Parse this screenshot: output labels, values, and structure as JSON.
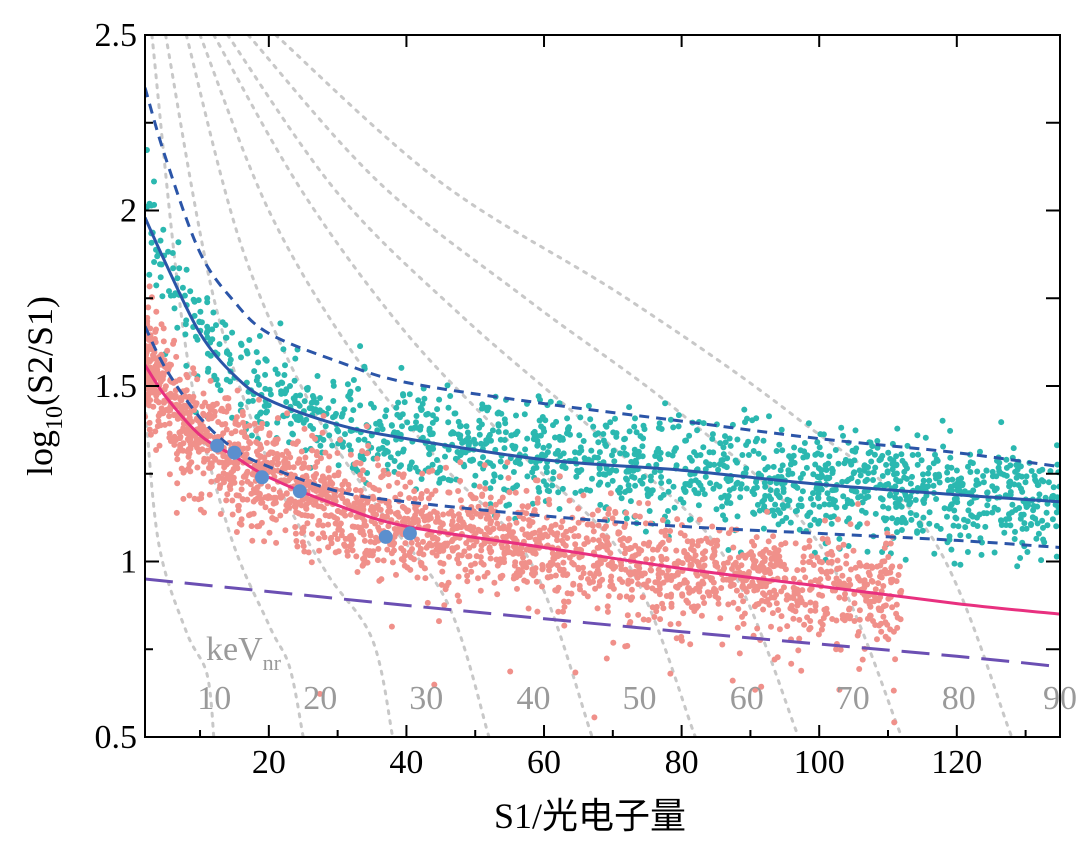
{
  "chart_data": {
    "type": "scatter",
    "xlabel": "S1/光电子量",
    "ylabel_main": "log",
    "ylabel_sub": "10",
    "ylabel_rest": "(S2/S1)",
    "xlim": [
      2,
      135
    ],
    "ylim": [
      0.5,
      2.5
    ],
    "x_ticks": [
      20,
      40,
      60,
      80,
      100,
      120
    ],
    "y_ticks": [
      0.5,
      1,
      1.5,
      2,
      2.5
    ],
    "x_tick_labels": [
      "20",
      "40",
      "60",
      "80",
      "100",
      "120"
    ],
    "y_tick_labels": [
      "0.5",
      "1",
      "1.5",
      "2",
      "2.5"
    ],
    "energy_unit_main": "keV",
    "energy_unit_sub": "nr",
    "energy_contours": [
      {
        "label": "10",
        "points": [
          [
            2,
            1.45
          ],
          [
            4,
            1.05
          ],
          [
            8,
            0.8
          ],
          [
            11,
            0.68
          ],
          [
            12,
            0.5
          ]
        ]
      },
      {
        "label": "20",
        "points": [
          [
            3,
            2.5
          ],
          [
            8,
            1.6
          ],
          [
            14,
            1.1
          ],
          [
            20,
            0.82
          ],
          [
            23,
            0.7
          ],
          [
            25,
            0.5
          ]
        ]
      },
      {
        "label": "30",
        "points": [
          [
            5,
            2.5
          ],
          [
            12,
            1.75
          ],
          [
            20,
            1.28
          ],
          [
            28,
            0.98
          ],
          [
            35,
            0.78
          ],
          [
            38,
            0.5
          ]
        ]
      },
      {
        "label": "40",
        "points": [
          [
            8,
            2.5
          ],
          [
            16,
            1.9
          ],
          [
            26,
            1.45
          ],
          [
            36,
            1.15
          ],
          [
            46,
            0.88
          ],
          [
            52,
            0.5
          ]
        ]
      },
      {
        "label": "50",
        "points": [
          [
            10,
            2.5
          ],
          [
            20,
            2.0
          ],
          [
            32,
            1.6
          ],
          [
            45,
            1.28
          ],
          [
            58,
            1.0
          ],
          [
            67,
            0.5
          ]
        ]
      },
      {
        "label": "60",
        "points": [
          [
            12,
            2.5
          ],
          [
            25,
            2.05
          ],
          [
            40,
            1.65
          ],
          [
            56,
            1.32
          ],
          [
            72,
            1.0
          ],
          [
            82,
            0.5
          ]
        ]
      },
      {
        "label": "70",
        "points": [
          [
            14,
            2.5
          ],
          [
            30,
            2.05
          ],
          [
            48,
            1.7
          ],
          [
            68,
            1.36
          ],
          [
            86,
            1.02
          ],
          [
            97,
            0.5
          ]
        ]
      },
      {
        "label": "80",
        "points": [
          [
            17,
            2.5
          ],
          [
            36,
            2.08
          ],
          [
            58,
            1.74
          ],
          [
            80,
            1.42
          ],
          [
            100,
            1.05
          ],
          [
            112,
            0.5
          ]
        ]
      },
      {
        "label": "90",
        "points": [
          [
            21,
            2.5
          ],
          [
            45,
            2.08
          ],
          [
            72,
            1.75
          ],
          [
            96,
            1.42
          ],
          [
            116,
            1.08
          ],
          [
            128,
            0.5
          ]
        ]
      }
    ],
    "energy_label_positions": [
      {
        "label": "10",
        "x": 12.8,
        "y": 0.58
      },
      {
        "label": "20",
        "x": 28.2,
        "y": 0.58
      },
      {
        "label": "30",
        "x": 43.6,
        "y": 0.58
      },
      {
        "label": "40",
        "x": 59.2,
        "y": 0.58
      },
      {
        "label": "50",
        "x": 74.6,
        "y": 0.58
      },
      {
        "label": "60",
        "x": 90.2,
        "y": 0.58
      },
      {
        "label": "70",
        "x": 105.6,
        "y": 0.58
      },
      {
        "label": "80",
        "x": 121.0,
        "y": 0.58
      },
      {
        "label": "90",
        "x": 136.4,
        "y": 0.58
      }
    ],
    "lines": [
      {
        "name": "ER band median",
        "color": "#2b55a8",
        "style": "solid",
        "points": [
          [
            2,
            1.98
          ],
          [
            5,
            1.85
          ],
          [
            10,
            1.65
          ],
          [
            15,
            1.53
          ],
          [
            20,
            1.46
          ],
          [
            30,
            1.39
          ],
          [
            40,
            1.35
          ],
          [
            60,
            1.29
          ],
          [
            80,
            1.26
          ],
          [
            100,
            1.22
          ],
          [
            120,
            1.19
          ],
          [
            135,
            1.17
          ]
        ]
      },
      {
        "name": "ER band upper",
        "color": "#2b55a8",
        "style": "dashed",
        "points": [
          [
            2,
            2.35
          ],
          [
            5,
            2.15
          ],
          [
            10,
            1.88
          ],
          [
            15,
            1.74
          ],
          [
            20,
            1.65
          ],
          [
            30,
            1.57
          ],
          [
            40,
            1.51
          ],
          [
            60,
            1.45
          ],
          [
            80,
            1.4
          ],
          [
            100,
            1.35
          ],
          [
            120,
            1.31
          ],
          [
            135,
            1.27
          ]
        ]
      },
      {
        "name": "ER band lower",
        "color": "#2b55a8",
        "style": "dashed",
        "points": [
          [
            2,
            1.67
          ],
          [
            5,
            1.55
          ],
          [
            10,
            1.41
          ],
          [
            15,
            1.32
          ],
          [
            20,
            1.27
          ],
          [
            30,
            1.2
          ],
          [
            40,
            1.17
          ],
          [
            60,
            1.13
          ],
          [
            80,
            1.1
          ],
          [
            100,
            1.08
          ],
          [
            120,
            1.06
          ],
          [
            135,
            1.04
          ]
        ]
      },
      {
        "name": "NR band median",
        "color": "#e8307f",
        "style": "solid",
        "points": [
          [
            2,
            1.56
          ],
          [
            5,
            1.47
          ],
          [
            10,
            1.36
          ],
          [
            15,
            1.3
          ],
          [
            20,
            1.24
          ],
          [
            30,
            1.16
          ],
          [
            40,
            1.1
          ],
          [
            60,
            1.04
          ],
          [
            80,
            0.98
          ],
          [
            100,
            0.93
          ],
          [
            120,
            0.88
          ],
          [
            135,
            0.85
          ]
        ]
      },
      {
        "name": "acceptance",
        "color": "#6b4fb3",
        "style": "longdash",
        "points": [
          [
            2,
            0.95
          ],
          [
            40,
            0.875
          ],
          [
            80,
            0.8
          ],
          [
            120,
            0.73
          ],
          [
            135,
            0.7
          ]
        ]
      }
    ],
    "highlighted_events": [
      {
        "x": 12.5,
        "y": 1.33
      },
      {
        "x": 15.0,
        "y": 1.31
      },
      {
        "x": 19.0,
        "y": 1.24
      },
      {
        "x": 24.5,
        "y": 1.2
      },
      {
        "x": 37.0,
        "y": 1.07
      },
      {
        "x": 40.5,
        "y": 1.08
      }
    ],
    "scatter_populations": [
      {
        "name": "ER calibration",
        "color": "#2bb8b0",
        "count": 1500,
        "band": "ER"
      },
      {
        "name": "NR calibration",
        "color": "#f0908a",
        "count": 2300,
        "band": "NR"
      }
    ],
    "colors": {
      "axis": "#000000",
      "contour": "#c8c8c8",
      "energy_text": "#9a9a9a",
      "highlight": "#5b8fce"
    }
  }
}
